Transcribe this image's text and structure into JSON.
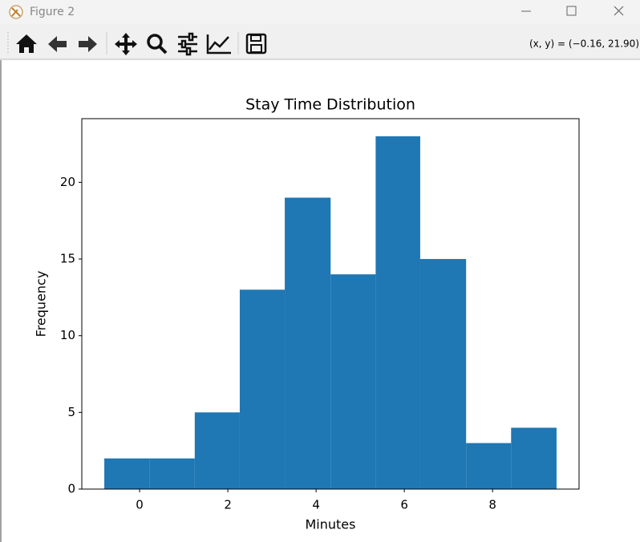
{
  "window": {
    "title": "Figure 2",
    "status": "(x, y) = (−0.16, 21.90)"
  },
  "chart_data": {
    "type": "histogram",
    "title": "Stay Time Distribution",
    "x_label": "Minutes",
    "y_label": "Frequency",
    "bins": [
      -0.8,
      0.22,
      1.25,
      2.27,
      3.29,
      4.33,
      5.35,
      6.36,
      7.4,
      8.42,
      9.45
    ],
    "values": [
      2,
      2,
      5,
      13,
      19,
      14,
      23,
      15,
      3,
      4
    ],
    "color": "#1f77b4",
    "xlim": [
      -1.31,
      9.96
    ],
    "ylim": [
      0,
      24.15
    ],
    "xticks": [
      0,
      2,
      4,
      6,
      8
    ],
    "yticks": [
      0,
      5,
      10,
      15,
      20
    ]
  }
}
